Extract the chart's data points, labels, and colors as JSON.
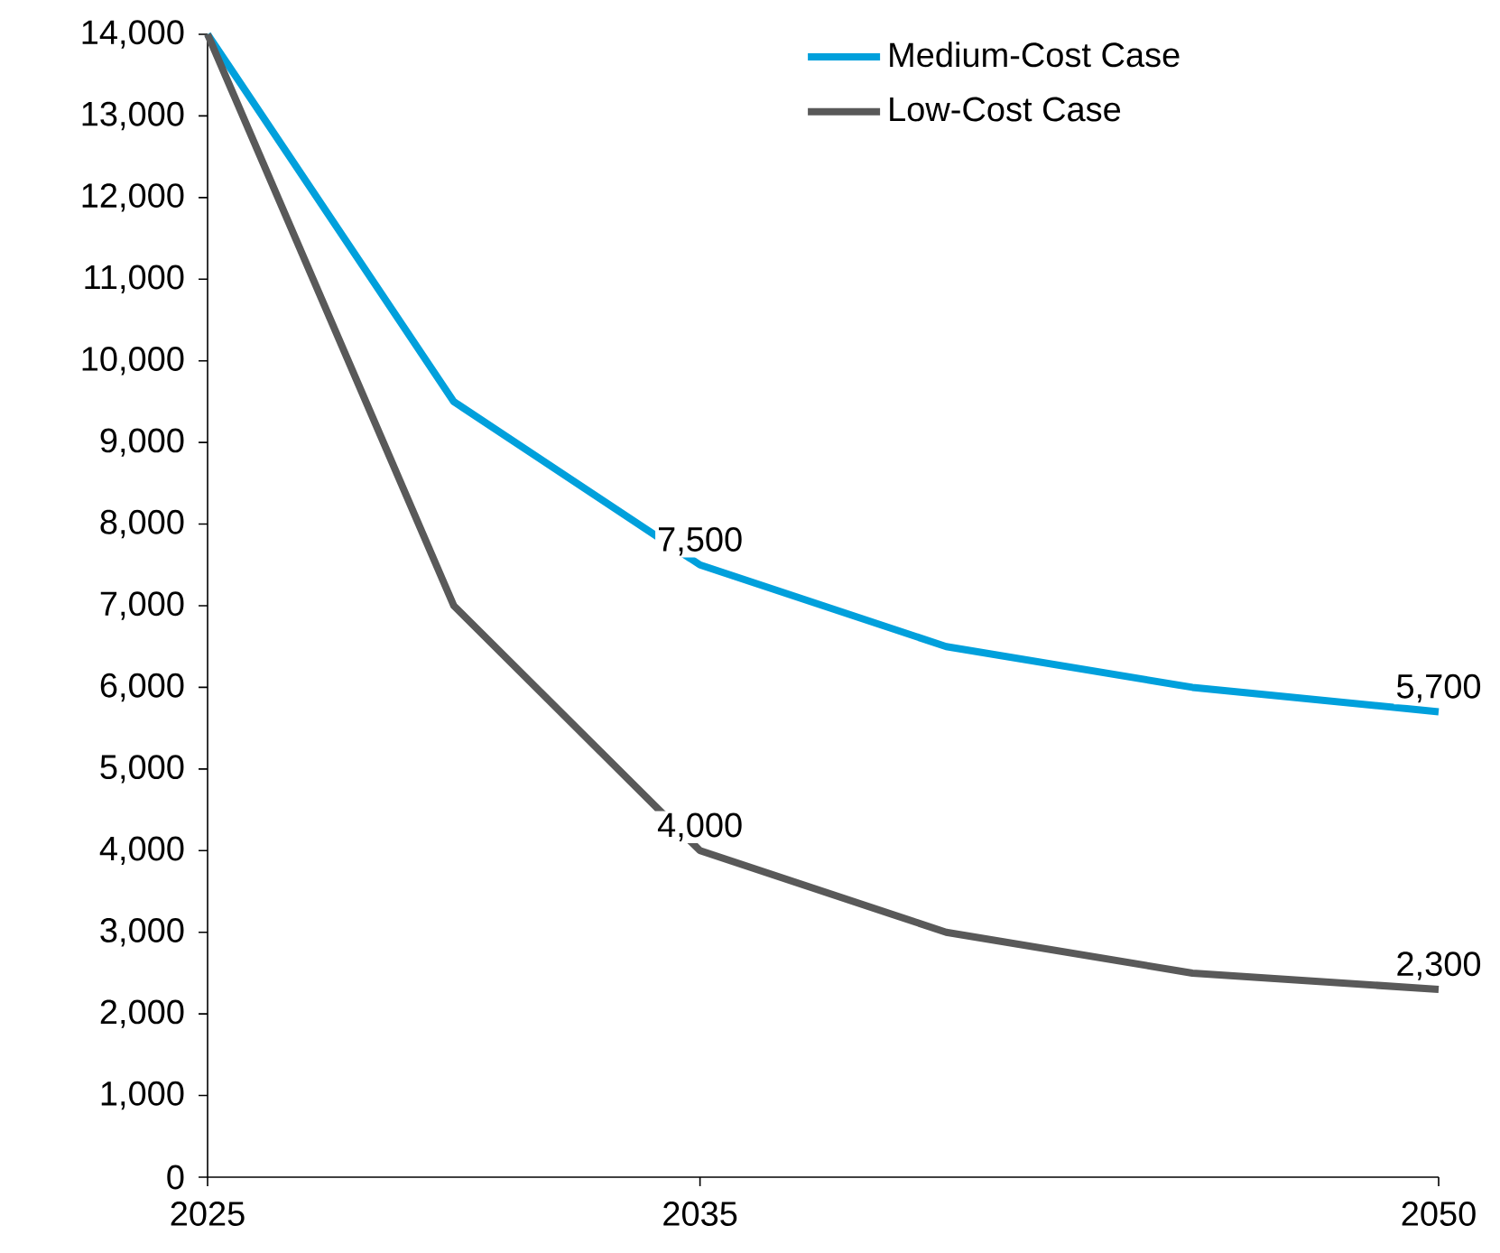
{
  "chart_data": {
    "type": "line",
    "x": [
      2025,
      2030,
      2035,
      2040,
      2045,
      2050
    ],
    "series": [
      {
        "name": "Medium-Cost Case",
        "color": "#00a0dc",
        "values": [
          14000,
          9500,
          7500,
          6500,
          6000,
          5700
        ],
        "value_labels": [
          null,
          null,
          "7,500",
          null,
          null,
          "5,700"
        ]
      },
      {
        "name": "Low-Cost Case",
        "color": "#595959",
        "values": [
          14000,
          7000,
          4000,
          3000,
          2500,
          2300
        ],
        "value_labels": [
          null,
          null,
          "4,000",
          null,
          null,
          "2,300"
        ]
      }
    ],
    "xlim": [
      2025,
      2050
    ],
    "xticks": [
      {
        "value": 2025,
        "label": "2025"
      },
      {
        "value": 2035,
        "label": "2035"
      },
      {
        "value": 2050,
        "label": "2050"
      }
    ],
    "ylim": [
      0,
      14000
    ],
    "yticks": [
      {
        "value": 0,
        "label": "0"
      },
      {
        "value": 1000,
        "label": "1,000"
      },
      {
        "value": 2000,
        "label": "2,000"
      },
      {
        "value": 3000,
        "label": "3,000"
      },
      {
        "value": 4000,
        "label": "4,000"
      },
      {
        "value": 5000,
        "label": "5,000"
      },
      {
        "value": 6000,
        "label": "6,000"
      },
      {
        "value": 7000,
        "label": "7,000"
      },
      {
        "value": 8000,
        "label": "8,000"
      },
      {
        "value": 9000,
        "label": "9,000"
      },
      {
        "value": 10000,
        "label": "10,000"
      },
      {
        "value": 11000,
        "label": "11,000"
      },
      {
        "value": 12000,
        "label": "12,000"
      },
      {
        "value": 13000,
        "label": "13,000"
      },
      {
        "value": 14000,
        "label": "14,000"
      }
    ],
    "legend": "top right",
    "marker": "none",
    "line_style": "solid",
    "grid": false
  }
}
